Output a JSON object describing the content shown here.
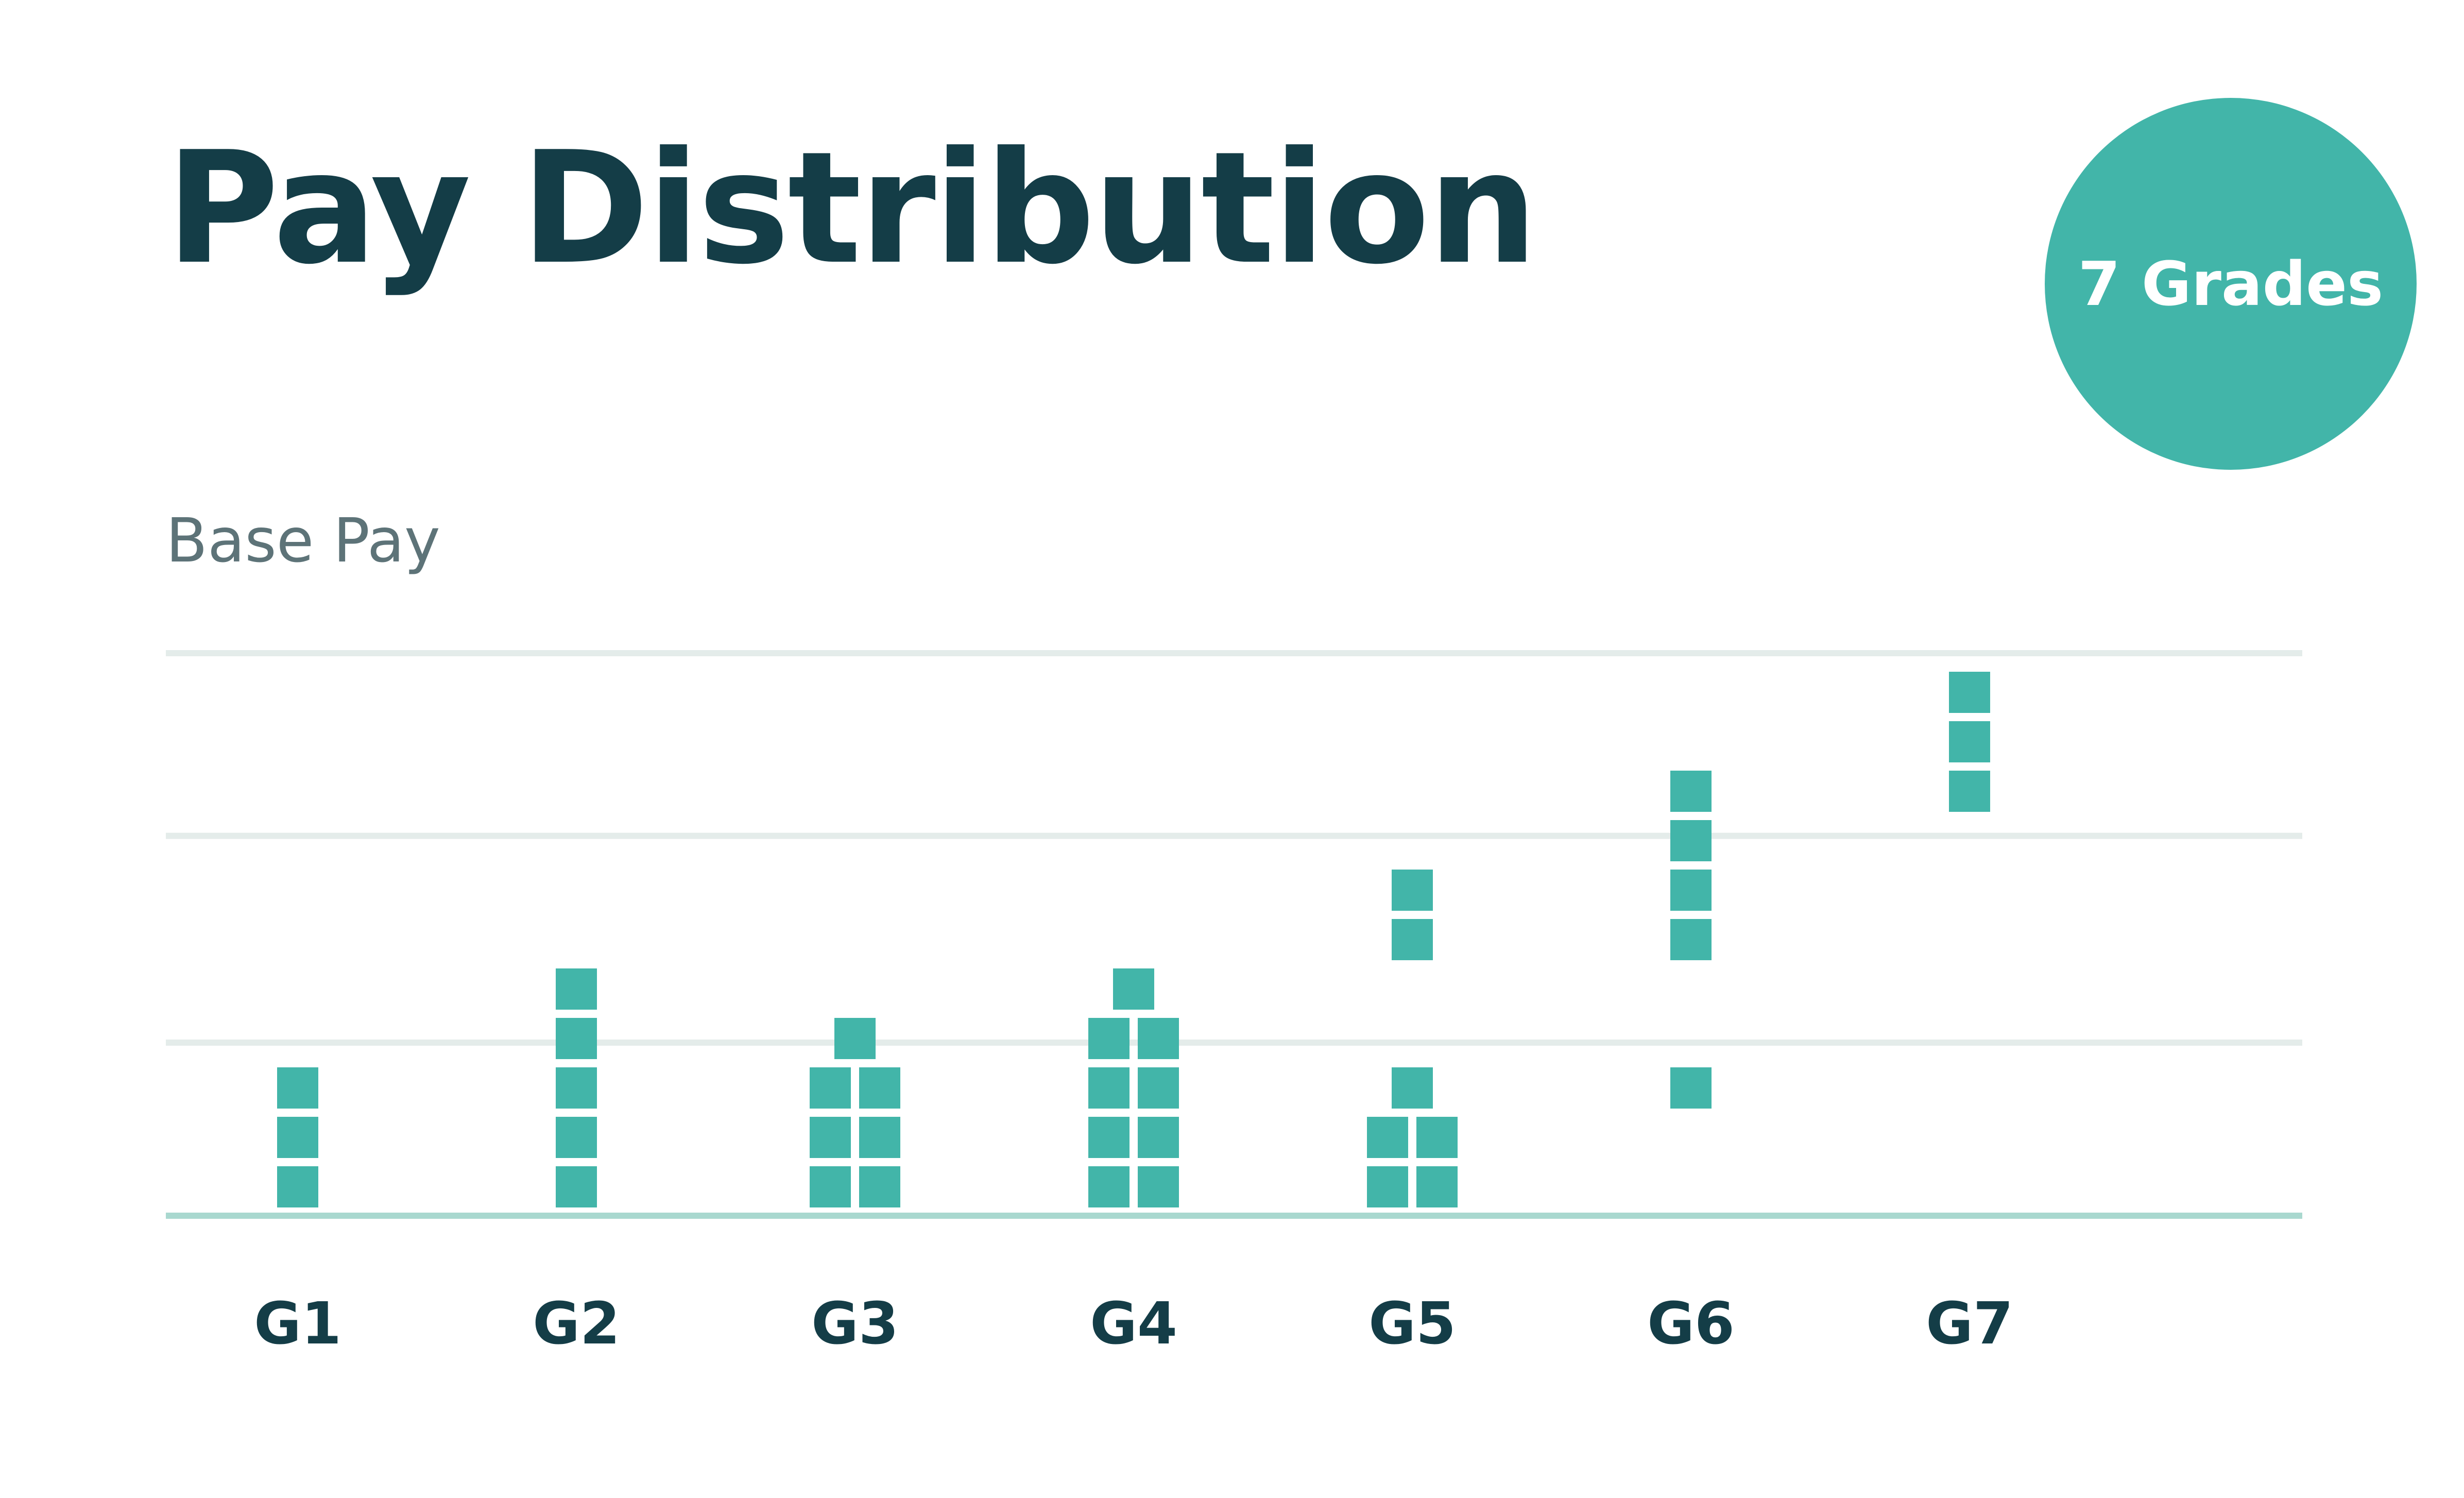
{
  "header": {
    "title": "Pay Distribution",
    "badge_label": "7 Grades"
  },
  "colors": {
    "title": "#143d47",
    "accent": "#42b5a9",
    "gridline": "#e4ecea",
    "baseline": "#a9d8cf",
    "axis_label": "#5d7378"
  },
  "chart_data": {
    "type": "scatter",
    "subtype": "stacked-dot-distribution",
    "title": "Pay Distribution",
    "ylabel": "Base Pay",
    "xlabel": "",
    "categories": [
      "G1",
      "G2",
      "G3",
      "G4",
      "G5",
      "G6",
      "G7"
    ],
    "y_tick_labels_shown": false,
    "ylim": [
      0,
      12
    ],
    "gridlines_y": [
      3.6,
      7.9,
      11.7
    ],
    "grid": true,
    "bins": [
      {
        "grade": "G1",
        "levels": [
          {
            "level": 0,
            "count": 1
          },
          {
            "level": 1,
            "count": 1
          },
          {
            "level": 2,
            "count": 1
          }
        ]
      },
      {
        "grade": "G2",
        "levels": [
          {
            "level": 0,
            "count": 1
          },
          {
            "level": 1,
            "count": 1
          },
          {
            "level": 2,
            "count": 1
          },
          {
            "level": 3,
            "count": 1
          },
          {
            "level": 4,
            "count": 1
          }
        ]
      },
      {
        "grade": "G3",
        "levels": [
          {
            "level": 0,
            "count": 2
          },
          {
            "level": 1,
            "count": 2
          },
          {
            "level": 2,
            "count": 2
          },
          {
            "level": 3,
            "count": 1
          }
        ]
      },
      {
        "grade": "G4",
        "levels": [
          {
            "level": 0,
            "count": 2
          },
          {
            "level": 1,
            "count": 2
          },
          {
            "level": 2,
            "count": 2
          },
          {
            "level": 3,
            "count": 2
          },
          {
            "level": 4,
            "count": 1
          }
        ]
      },
      {
        "grade": "G5",
        "levels": [
          {
            "level": 0,
            "count": 2
          },
          {
            "level": 1,
            "count": 2
          },
          {
            "level": 2,
            "count": 1
          },
          {
            "level": 5,
            "count": 1
          },
          {
            "level": 6,
            "count": 1
          }
        ]
      },
      {
        "grade": "G6",
        "levels": [
          {
            "level": 2,
            "count": 1
          },
          {
            "level": 5,
            "count": 1
          },
          {
            "level": 6,
            "count": 1
          },
          {
            "level": 7,
            "count": 1
          },
          {
            "level": 8,
            "count": 1
          }
        ]
      },
      {
        "grade": "G7",
        "levels": [
          {
            "level": 8,
            "count": 1
          },
          {
            "level": 9,
            "count": 1
          },
          {
            "level": 10,
            "count": 1
          }
        ]
      }
    ],
    "employee_counts": [
      3,
      5,
      7,
      9,
      7,
      5,
      3
    ]
  }
}
